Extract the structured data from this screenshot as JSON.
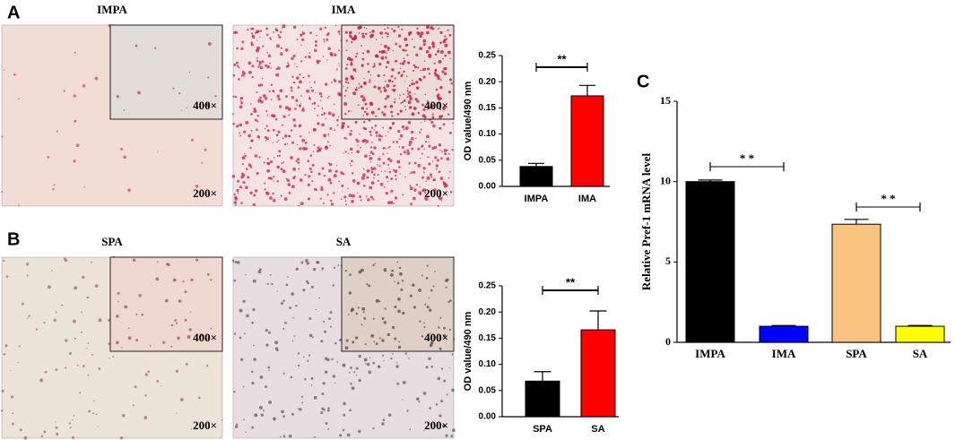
{
  "panel_labels": [
    "A",
    "B",
    "C"
  ],
  "micrographs": [
    {
      "title": "IMPA",
      "inset_label": "400×",
      "main_label": "200×"
    },
    {
      "title": "IMA",
      "inset_label": "400×",
      "main_label": "200×"
    },
    {
      "title": "SPA",
      "inset_label": "400×",
      "main_label": "200×"
    },
    {
      "title": "SA",
      "inset_label": "400×",
      "main_label": "200×"
    }
  ],
  "chart_data": [
    {
      "type": "bar",
      "y_label": "OD value/490 nm",
      "categories": [
        "IMPA",
        "IMA"
      ],
      "values": [
        0.038,
        0.173
      ],
      "errors": [
        0.006,
        0.02
      ],
      "colors": [
        "#000000",
        "#ff0000"
      ],
      "ylim": [
        0,
        0.25
      ],
      "yticks": [
        {
          "value": 0,
          "label": "0.00"
        },
        {
          "value": 0.05,
          "label": "0.05"
        },
        {
          "value": 0.1,
          "label": "0.10"
        },
        {
          "value": 0.15,
          "label": "0.15"
        },
        {
          "value": 0.2,
          "label": "0.20"
        },
        {
          "value": 0.25,
          "label": "0.25"
        }
      ],
      "annotations": [
        "**"
      ]
    },
    {
      "type": "bar",
      "y_label": "OD value/490 nm",
      "categories": [
        "SPA",
        "SA"
      ],
      "values": [
        0.068,
        0.166
      ],
      "errors": [
        0.018,
        0.036
      ],
      "colors": [
        "#000000",
        "#ff0000"
      ],
      "ylim": [
        0,
        0.25
      ],
      "yticks": [
        {
          "value": 0,
          "label": "0.00"
        },
        {
          "value": 0.05,
          "label": "0.05"
        },
        {
          "value": 0.1,
          "label": "0.10"
        },
        {
          "value": 0.15,
          "label": "0.15"
        },
        {
          "value": 0.2,
          "label": "0.20"
        },
        {
          "value": 0.25,
          "label": "0.25"
        }
      ],
      "annotations": [
        "**"
      ]
    },
    {
      "type": "bar",
      "y_label": "Relative  Pref-1 mRNA level",
      "categories": [
        "IMPA",
        "IMA",
        "SPA",
        "SA"
      ],
      "values": [
        10.0,
        1.0,
        7.35,
        1.0
      ],
      "errors": [
        0.1,
        0.05,
        0.3,
        0.05
      ],
      "colors": [
        "#000000",
        "#0000ff",
        "#f9c27f",
        "#ffff00"
      ],
      "ylim": [
        0,
        15
      ],
      "yticks": [
        0,
        5,
        10,
        15
      ],
      "annotations": [
        "* *",
        "* *"
      ]
    }
  ]
}
